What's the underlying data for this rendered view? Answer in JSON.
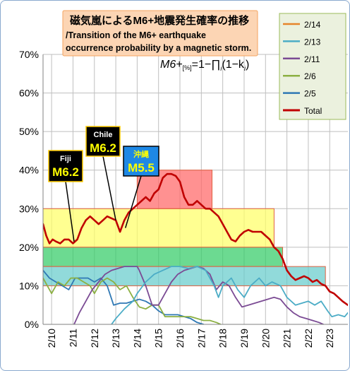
{
  "colors": {
    "background": "#ffffff",
    "grid": "#bfbfbf",
    "title_box": "#fcd5b4",
    "title_border": "#f4a460",
    "legend_box": "#ebf1de",
    "yellow_band": "#ffff66",
    "green_band": "#33cc66",
    "red_band": "#ff6666",
    "teal_band": "#66cccc",
    "frame": "#8aa9cf"
  },
  "chart_data": {
    "type": "line",
    "title": "磁気嵐によるM6+地震発生確率の推移",
    "subtitle": "/Transition of the M6+ earthquake occurrence probability by a magnetic storm.",
    "formula": {
      "left": "M6+",
      "sub": "[%]",
      "right": "=1−∏",
      "index": "i",
      "tail": "(1−k",
      "tail_index": "i",
      "close": ")"
    },
    "ylim": [
      0,
      70
    ],
    "xlim": [
      9.6,
      23.85
    ],
    "y_ticks": [
      0,
      10,
      20,
      30,
      40,
      50,
      60,
      70
    ],
    "y_tick_labels": [
      "0%",
      "10%",
      "20%",
      "30%",
      "40%",
      "50%",
      "60%",
      "70%"
    ],
    "x_ticks": [
      10,
      11,
      12,
      13,
      14,
      15,
      16,
      17,
      18,
      19,
      20,
      21,
      22,
      23
    ],
    "x_tick_labels": [
      "2/10",
      "2/11",
      "2/12",
      "2/13",
      "2/14",
      "2/15",
      "2/16",
      "2/17",
      "2/18",
      "2/19",
      "2/20",
      "2/21",
      "2/22",
      "2/23"
    ],
    "grid": true,
    "legend_position": "top-right",
    "legend": [
      {
        "name": "2/14",
        "color": "#e6842a"
      },
      {
        "name": "2/13",
        "color": "#4bacc6"
      },
      {
        "name": "2/11",
        "color": "#7b4b94"
      },
      {
        "name": "2/6",
        "color": "#8cb043"
      },
      {
        "name": "2/5",
        "color": "#2f78b4"
      },
      {
        "name": "Total",
        "color": "#c00000"
      }
    ],
    "bands": [
      {
        "x0": 9.6,
        "x1": 20.4,
        "y0": 20,
        "y1": 30,
        "fill": "#ffff66",
        "stroke": "#e06040"
      },
      {
        "x0": 9.6,
        "x1": 20.8,
        "y0": 15,
        "y1": 20,
        "fill": "#33cc66",
        "stroke": "#e06040"
      },
      {
        "x0": 14.0,
        "x1": 17.5,
        "y0": 30,
        "y1": 40,
        "fill": "#ff6666",
        "stroke": "#e06040"
      },
      {
        "x0": 9.6,
        "x1": 22.8,
        "y0": 10,
        "y1": 15,
        "fill": "#66cccc",
        "stroke": "#e06040"
      }
    ],
    "series": [
      {
        "name": "Total",
        "color": "#c00000",
        "width": 2.6,
        "x": [
          9.6,
          9.75,
          9.9,
          10.05,
          10.2,
          10.4,
          10.6,
          10.8,
          11.0,
          11.2,
          11.4,
          11.6,
          11.8,
          12.0,
          12.2,
          12.4,
          12.6,
          12.8,
          13.0,
          13.2,
          13.4,
          13.6,
          13.8,
          14.0,
          14.2,
          14.4,
          14.6,
          14.8,
          15.0,
          15.2,
          15.4,
          15.6,
          15.8,
          16.0,
          16.2,
          16.4,
          16.6,
          16.8,
          17.0,
          17.2,
          17.4,
          17.6,
          17.8,
          18.0,
          18.2,
          18.4,
          18.6,
          18.8,
          19.0,
          19.2,
          19.4,
          19.6,
          19.8,
          20.0,
          20.2,
          20.4,
          20.6,
          20.8,
          21.0,
          21.2,
          21.4,
          21.6,
          21.8,
          22.0,
          22.2,
          22.4,
          22.6,
          22.8,
          23.0,
          23.2,
          23.4,
          23.6,
          23.85
        ],
        "y": [
          26,
          23,
          21,
          22,
          21.5,
          21,
          22,
          22,
          21,
          22,
          25,
          27,
          28,
          27,
          26,
          27,
          28,
          27.5,
          27,
          24,
          27,
          29,
          30,
          31,
          32,
          33,
          32,
          34,
          35,
          38,
          39,
          39,
          38.5,
          37,
          33,
          31,
          31,
          32,
          31,
          30,
          30,
          29,
          28,
          26,
          24,
          22,
          21.5,
          23,
          24,
          24.5,
          24,
          24,
          24,
          23,
          22,
          20,
          19,
          17,
          14,
          12.5,
          11.5,
          12,
          12.5,
          12,
          11,
          11.5,
          10.5,
          10,
          8.5,
          8,
          7,
          6,
          5
        ]
      },
      {
        "name": "2/14",
        "color": "#e6842a",
        "width": 1.8,
        "x": [
          9.6,
          9.75,
          9.9,
          10.05,
          10.2,
          10.4,
          10.6,
          10.8,
          11.0,
          11.2,
          11.4,
          11.6,
          11.8,
          12.0,
          12.2,
          12.4,
          12.6,
          12.8,
          13.0,
          13.2,
          13.4,
          13.6,
          13.8,
          14.0,
          14.2,
          14.4,
          14.6,
          14.8,
          15.0,
          15.2,
          15.4,
          15.6,
          15.8,
          16.0,
          16.2,
          16.4,
          16.6,
          16.8,
          17.0,
          17.2,
          17.4,
          17.6,
          17.8,
          18.0,
          18.2,
          18.4,
          18.6,
          18.8,
          19.0,
          19.2,
          19.4,
          19.6,
          19.8,
          20.0,
          20.2,
          20.4,
          20.6,
          20.8,
          21.0,
          21.2,
          21.4,
          21.6,
          21.8,
          22.0,
          22.2,
          22.4,
          22.6,
          22.8,
          23.0,
          23.2,
          23.4,
          23.6,
          23.85
        ],
        "y": [
          26,
          23,
          21,
          22,
          21.5,
          21,
          22,
          22,
          21,
          22,
          25,
          27,
          28,
          27,
          26,
          27,
          28,
          27.5,
          27,
          24,
          27,
          29,
          30,
          31,
          32,
          33,
          32,
          34,
          35,
          38,
          39,
          39,
          38.5,
          37,
          33,
          31,
          31,
          32,
          31,
          30,
          30,
          29,
          28,
          26,
          24,
          22,
          21.5,
          23,
          24,
          24.5,
          24,
          24,
          24,
          23,
          22,
          20,
          19,
          17,
          14,
          12.5,
          11.5,
          12,
          12.5,
          12,
          11,
          11.5,
          10.5,
          10,
          8.5,
          8,
          7,
          6,
          5
        ]
      },
      {
        "name": "2/13",
        "color": "#4bacc6",
        "width": 1.8,
        "x": [
          12.8,
          13.0,
          13.4,
          13.8,
          14.0,
          14.4,
          14.8,
          15.2,
          15.6,
          16.0,
          16.4,
          16.8,
          17.2,
          17.4,
          17.6,
          17.8,
          18.0,
          18.4,
          18.7,
          19.0,
          19.3,
          19.7,
          20.0,
          20.3,
          20.7,
          21.0,
          21.4,
          21.7,
          22.0,
          22.3,
          22.6,
          22.9,
          23.1,
          23.4,
          23.7,
          23.85
        ],
        "y": [
          0,
          1.5,
          4,
          6,
          8,
          11,
          13,
          14,
          15,
          15,
          14.5,
          15,
          14,
          12,
          10,
          7,
          10,
          12,
          9,
          7,
          10,
          12,
          10,
          11,
          10,
          7,
          5,
          5.5,
          6,
          5,
          6,
          3.5,
          2,
          2.5,
          2,
          3
        ]
      },
      {
        "name": "2/11",
        "color": "#7b4b94",
        "width": 1.8,
        "x": [
          11.05,
          11.3,
          11.6,
          11.9,
          12.2,
          12.5,
          12.8,
          13.1,
          13.4,
          13.7,
          14.0,
          14.1,
          14.4,
          14.7,
          15.0,
          15.3,
          15.6,
          15.9,
          16.2,
          16.5,
          16.8,
          17.1,
          17.4,
          17.7,
          18.0,
          18.3,
          18.6,
          18.9,
          19.2,
          19.5,
          19.8,
          20.1,
          20.4,
          20.7,
          21.0,
          21.3,
          21.6,
          21.9,
          22.2,
          22.5,
          22.7
        ],
        "y": [
          0,
          3,
          6,
          9,
          11,
          13,
          14,
          14.5,
          15,
          15,
          15,
          14,
          10,
          5,
          5,
          8,
          11,
          13,
          14,
          14.5,
          15,
          14.5,
          13,
          9,
          11,
          10,
          7,
          4.5,
          5,
          5.5,
          6,
          6.5,
          7,
          6.5,
          4.5,
          3,
          2,
          1.5,
          1,
          0.5,
          0
        ]
      },
      {
        "name": "2/6",
        "color": "#8cb043",
        "width": 1.8,
        "x": [
          9.6,
          9.8,
          10.0,
          10.3,
          10.6,
          10.9,
          11.2,
          11.5,
          11.8,
          12.0,
          12.3,
          12.6,
          12.9,
          13.2,
          13.5,
          13.8,
          14.1,
          14.4,
          14.7,
          15.0,
          15.3,
          15.6,
          15.9,
          16.2,
          16.5,
          16.8,
          17.1,
          17.4,
          17.7,
          17.9
        ],
        "y": [
          12,
          10,
          8,
          11,
          10,
          12,
          12,
          11,
          10,
          8,
          11,
          12,
          11,
          9,
          10,
          7,
          4.5,
          4,
          5,
          5,
          2,
          2,
          2,
          2,
          2,
          1.5,
          1,
          1,
          0.5,
          0
        ]
      },
      {
        "name": "2/5",
        "color": "#2f78b4",
        "width": 1.8,
        "x": [
          9.6,
          9.9,
          10.2,
          10.5,
          10.8,
          11.1,
          11.4,
          11.7,
          12.0,
          12.3,
          12.6,
          12.9,
          13.2,
          13.5,
          13.8,
          14.1,
          14.4,
          14.7,
          15.0,
          15.3,
          15.6,
          15.9,
          16.2,
          16.5,
          16.8,
          17.1
        ],
        "y": [
          14,
          12,
          11,
          10,
          9,
          12,
          12,
          12,
          11,
          12,
          10,
          5,
          5.5,
          5.5,
          6,
          6.5,
          6,
          5,
          3.5,
          2.5,
          2.5,
          2.5,
          2,
          1.5,
          0.5,
          0
        ]
      }
    ],
    "annotations": [
      {
        "id": "fiji",
        "line1": "Fiji",
        "line2": "M6.2",
        "bg": "#000000",
        "line1_color": "#ffffff",
        "line2_color": "#ffff00",
        "border": "#ffcc00",
        "x": 11.05,
        "y": 21.5
      },
      {
        "id": "chile",
        "line1": "Chile",
        "line2": "M6.2",
        "bg": "#000000",
        "line1_color": "#ffffff",
        "line2_color": "#ffff00",
        "border": "#ffcc00",
        "x": 13.0,
        "y": 27
      },
      {
        "id": "okinawa",
        "line1": "沖縄",
        "line2": "M5.5",
        "bg": "#1e88e5",
        "line1_color": "#ffff00",
        "line2_color": "#ffff00",
        "border": "#000000",
        "x": 13.45,
        "y": 25
      }
    ]
  }
}
